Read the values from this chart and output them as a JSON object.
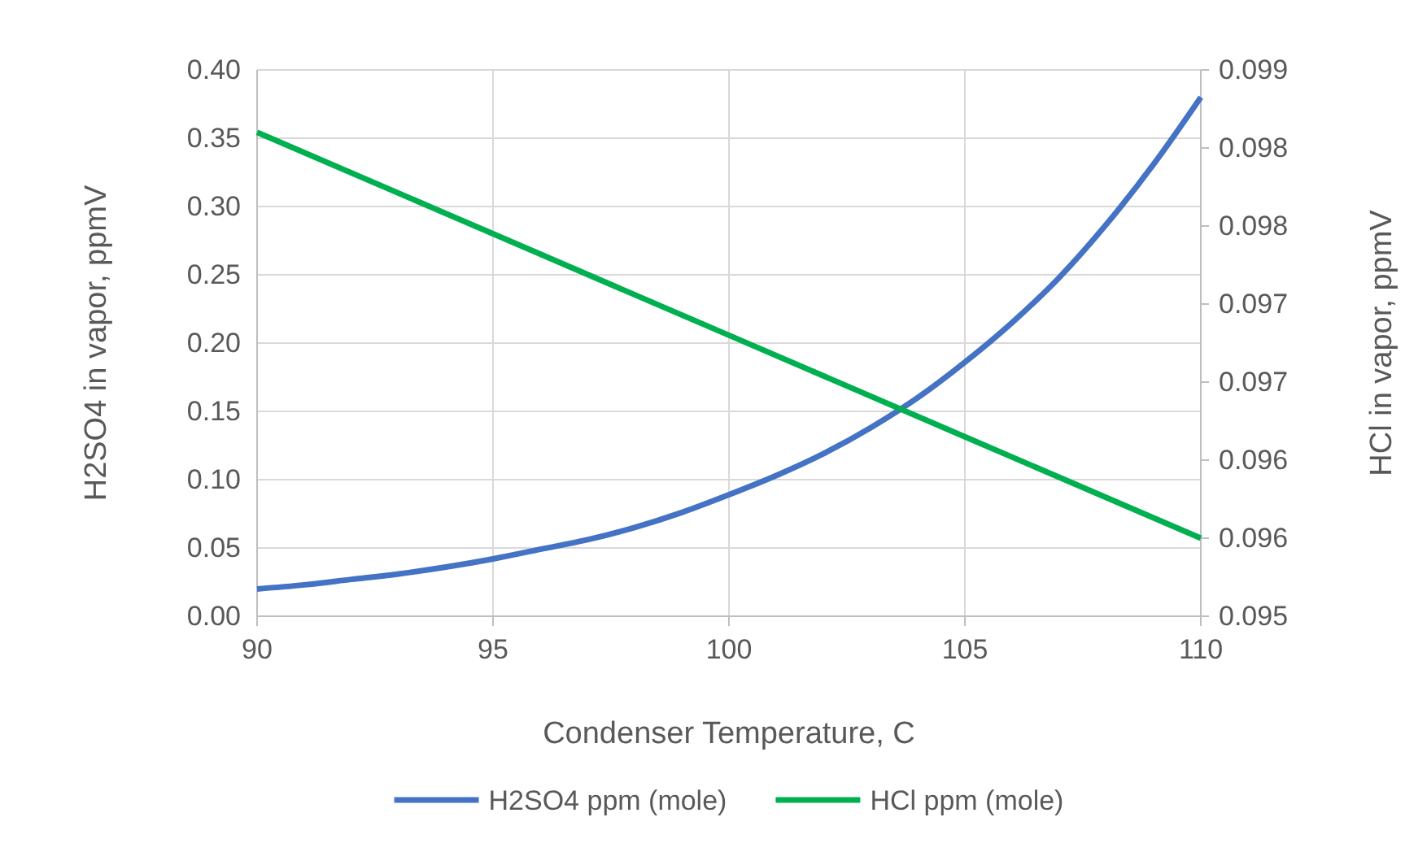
{
  "chart_data": {
    "type": "line",
    "xlabel": "Condenser Temperature, C",
    "ylabel": "H2SO4 in vapor, ppmV",
    "y2label": "HCl in vapor, ppmV",
    "xlim": [
      90,
      110
    ],
    "xticks": [
      90,
      95,
      100,
      105,
      110
    ],
    "ylim": [
      0,
      0.4
    ],
    "yticks": [
      {
        "value": 0,
        "label": "0.00"
      },
      {
        "value": 0.05,
        "label": "0.05"
      },
      {
        "value": 0.1,
        "label": "0.10"
      },
      {
        "value": 0.15,
        "label": "0.15"
      },
      {
        "value": 0.2,
        "label": "0.20"
      },
      {
        "value": 0.25,
        "label": "0.25"
      },
      {
        "value": 0.3,
        "label": "0.30"
      },
      {
        "value": 0.35,
        "label": "0.35"
      },
      {
        "value": 0.4,
        "label": "0.40"
      }
    ],
    "y2lim": [
      0.095,
      0.0985
    ],
    "y2ticks": [
      {
        "value": 0.095,
        "label": "0.095"
      },
      {
        "value": 0.0955,
        "label": "0.096"
      },
      {
        "value": 0.096,
        "label": "0.096"
      },
      {
        "value": 0.0965,
        "label": "0.097"
      },
      {
        "value": 0.097,
        "label": "0.097"
      },
      {
        "value": 0.0975,
        "label": "0.098"
      },
      {
        "value": 0.098,
        "label": "0.098"
      },
      {
        "value": 0.0985,
        "label": "0.099"
      }
    ],
    "grid": true,
    "legend": "bottom",
    "line_style": "solid",
    "marker": "none",
    "series": [
      {
        "name": "H2SO4 ppm (mole)",
        "color": "#4472c4",
        "x": [
          90,
          91,
          92,
          93,
          94,
          95,
          96,
          97,
          98,
          99,
          100,
          101,
          102,
          103,
          104,
          105,
          106,
          107,
          108,
          109,
          110
        ],
        "values": [
          0.02,
          0.023,
          0.027,
          0.031,
          0.036,
          0.042,
          0.049,
          0.056,
          0.065,
          0.076,
          0.089,
          0.103,
          0.119,
          0.138,
          0.16,
          0.186,
          0.215,
          0.248,
          0.287,
          0.331,
          0.38
        ]
      },
      {
        "name": "HCl ppm (mole)",
        "color": "#00b050",
        "axis": "y2",
        "x": [
          90,
          100,
          110
        ],
        "values": [
          0.0981,
          0.0968,
          0.0955
        ]
      }
    ]
  }
}
